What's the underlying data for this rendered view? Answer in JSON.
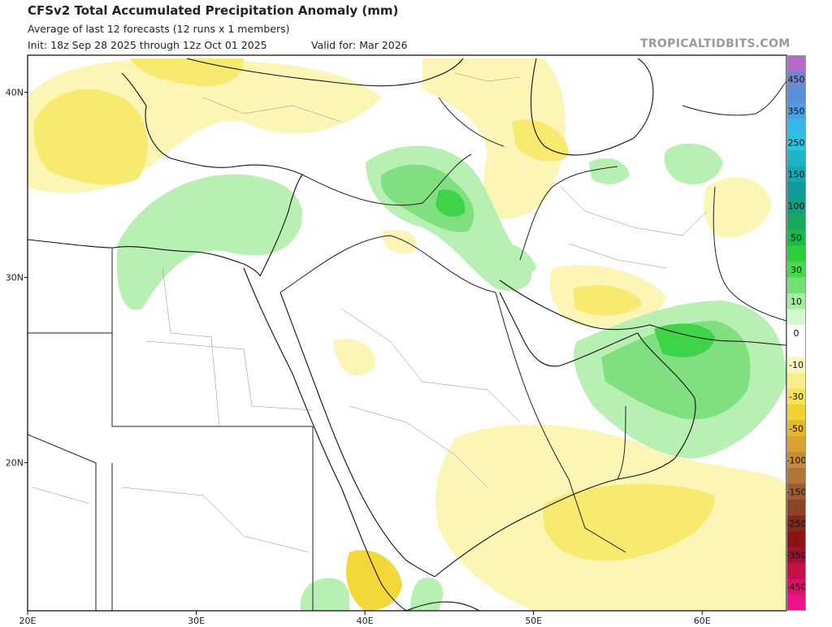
{
  "header": {
    "title": "CFSv2 Total Accumulated Precipitation Anomaly (mm)",
    "subtitle": "Average of last 12 forecasts (12 runs x 1 members)",
    "init": "Init: 18z Sep 28 2025 through 12z Oct 01 2025",
    "valid": "Valid for: Mar 2026",
    "brand": "TROPICALTIDBITS.COM"
  },
  "map": {
    "lon_range": [
      20,
      65
    ],
    "lat_range": [
      12,
      42
    ],
    "lon_ticks": [
      {
        "value": 20,
        "label": "20E"
      },
      {
        "value": 30,
        "label": "30E"
      },
      {
        "value": 40,
        "label": "40E"
      },
      {
        "value": 50,
        "label": "50E"
      },
      {
        "value": 60,
        "label": "60E"
      }
    ],
    "lat_ticks": [
      {
        "value": 40,
        "label": "40N"
      },
      {
        "value": 30,
        "label": "30N"
      },
      {
        "value": 20,
        "label": "20N"
      }
    ],
    "colors": {
      "dry_light": "#fbf6b6",
      "dry_mid": "#f7ea6e",
      "dry_strong": "#f3d83a",
      "wet_light": "#b8f0b4",
      "wet_mid": "#80e080",
      "wet_strong": "#3fd34a"
    }
  },
  "legend": {
    "bins": [
      {
        "label": "",
        "color": "#b66bc8"
      },
      {
        "label": "450",
        "color": "#6f86d4"
      },
      {
        "label": "",
        "color": "#5a8fd9"
      },
      {
        "label": "350",
        "color": "#4aa0e2"
      },
      {
        "label": "",
        "color": "#38b6e8"
      },
      {
        "label": "250",
        "color": "#28c4e0"
      },
      {
        "label": "",
        "color": "#1eb4c8"
      },
      {
        "label": "150",
        "color": "#16a8b2"
      },
      {
        "label": "",
        "color": "#119c9a"
      },
      {
        "label": "100",
        "color": "#13a080"
      },
      {
        "label": "",
        "color": "#18a860"
      },
      {
        "label": "50",
        "color": "#1cb848"
      },
      {
        "label": "",
        "color": "#2bcf3a"
      },
      {
        "label": "30",
        "color": "#46db4c"
      },
      {
        "label": "",
        "color": "#72e072"
      },
      {
        "label": "10",
        "color": "#a6ee9f"
      },
      {
        "label": "",
        "color": "#d3f7cd"
      },
      {
        "label": "0",
        "color": "#ffffff"
      },
      {
        "label": "",
        "color": "#ffffff"
      },
      {
        "label": "-10",
        "color": "#fbf7c0"
      },
      {
        "label": "",
        "color": "#f8ee8c"
      },
      {
        "label": "-30",
        "color": "#f5e15a"
      },
      {
        "label": "",
        "color": "#f2d230"
      },
      {
        "label": "-50",
        "color": "#e6b52a"
      },
      {
        "label": "",
        "color": "#d9a032"
      },
      {
        "label": "-100",
        "color": "#c58a3a"
      },
      {
        "label": "",
        "color": "#b27438"
      },
      {
        "label": "-150",
        "color": "#9e5a30"
      },
      {
        "label": "",
        "color": "#8c4428"
      },
      {
        "label": "-250",
        "color": "#7e2a1c"
      },
      {
        "label": "",
        "color": "#8a1414"
      },
      {
        "label": "-350",
        "color": "#a01030"
      },
      {
        "label": "",
        "color": "#c4104a"
      },
      {
        "label": "-450",
        "color": "#dc1268"
      },
      {
        "label": "",
        "color": "#f0128a"
      }
    ]
  }
}
